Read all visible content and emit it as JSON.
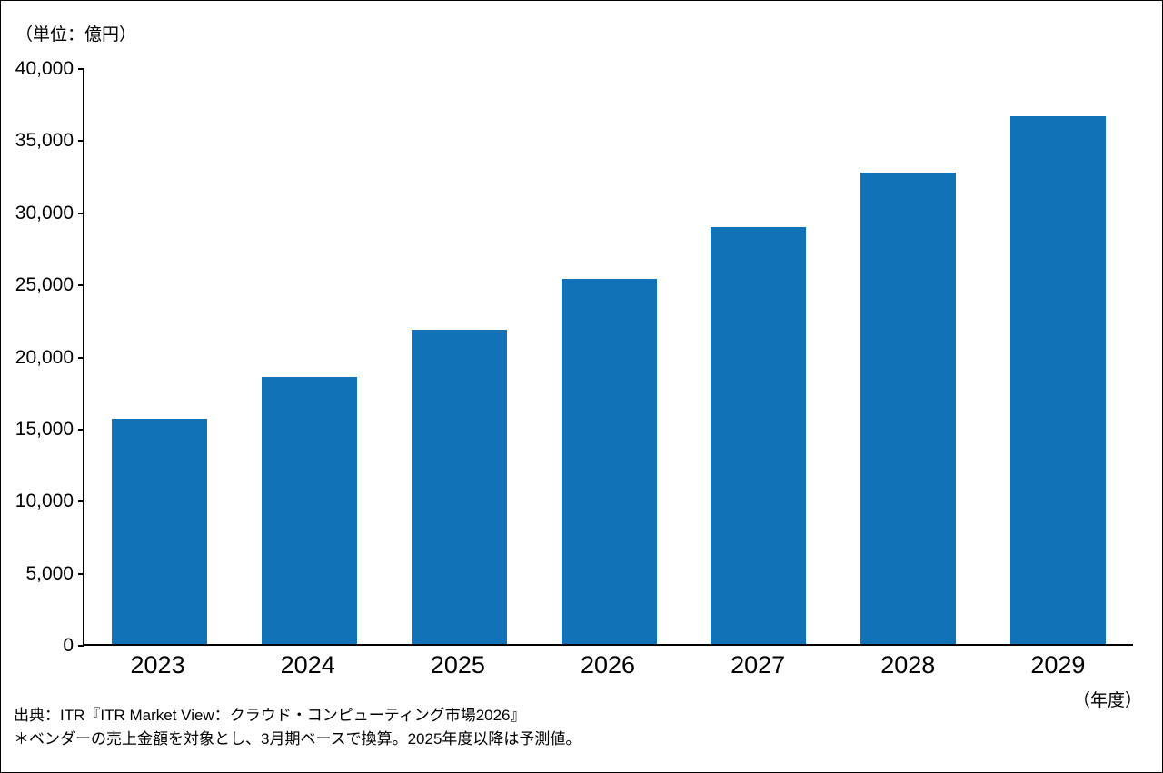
{
  "chart_data": {
    "type": "bar",
    "title": "",
    "unit_label": "（単位：億円）",
    "x_axis_unit": "（年度）",
    "categories": [
      "2023",
      "2024",
      "2025",
      "2026",
      "2027",
      "2028",
      "2029"
    ],
    "values": [
      15600,
      18500,
      21800,
      25300,
      28900,
      32700,
      36600
    ],
    "ylim": [
      0,
      40000
    ],
    "yticks": [
      0,
      5000,
      10000,
      15000,
      20000,
      25000,
      30000,
      35000,
      40000
    ],
    "bar_color": "#1272B8",
    "grid": false,
    "legend": "none"
  },
  "footer": {
    "source": "出典：ITR『ITR Market View：クラウド・コンピューティング市場2026』",
    "note": "＊ベンダーの売上金額を対象とし、3月期ベースで換算。2025年度以降は予測値。"
  }
}
